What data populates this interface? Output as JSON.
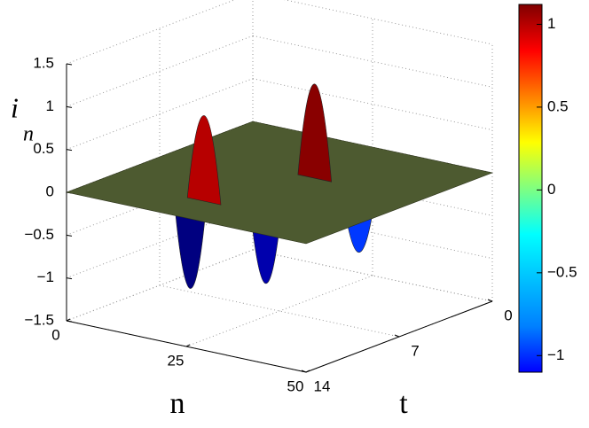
{
  "chart_data": {
    "type": "surface",
    "xlabel": "n",
    "ylabel": "t",
    "zlabel": {
      "base": "i",
      "sub": "n"
    },
    "xlim": [
      0,
      50
    ],
    "xticks": [
      0,
      25,
      50
    ],
    "ylim": [
      14,
      0
    ],
    "yticks": [
      14,
      7,
      0
    ],
    "zlim": [
      -1.5,
      1.5
    ],
    "zticks": [
      {
        "value": -1.5,
        "label": "−1.5"
      },
      {
        "value": -1,
        "label": "−1"
      },
      {
        "value": -0.5,
        "label": "−0.5"
      },
      0,
      0.5,
      1,
      1.5
    ],
    "grid": true,
    "colormap": "jet",
    "peaks": {
      "n": [
        17.2,
        21.5,
        28.5,
        28.2,
        39
      ],
      "t": [
        10.9,
        11.4,
        9.3,
        5.5,
        6.1
      ],
      "values": [
        -1.1,
        1,
        -1,
        1.1,
        -0.7
      ]
    },
    "colorbar": {
      "lim": [
        -1.1,
        1.12
      ],
      "ticks": [
        {
          "value": -1,
          "label": "−1"
        },
        {
          "value": -0.5,
          "label": "−0.5"
        },
        0,
        0.5,
        1
      ]
    }
  }
}
